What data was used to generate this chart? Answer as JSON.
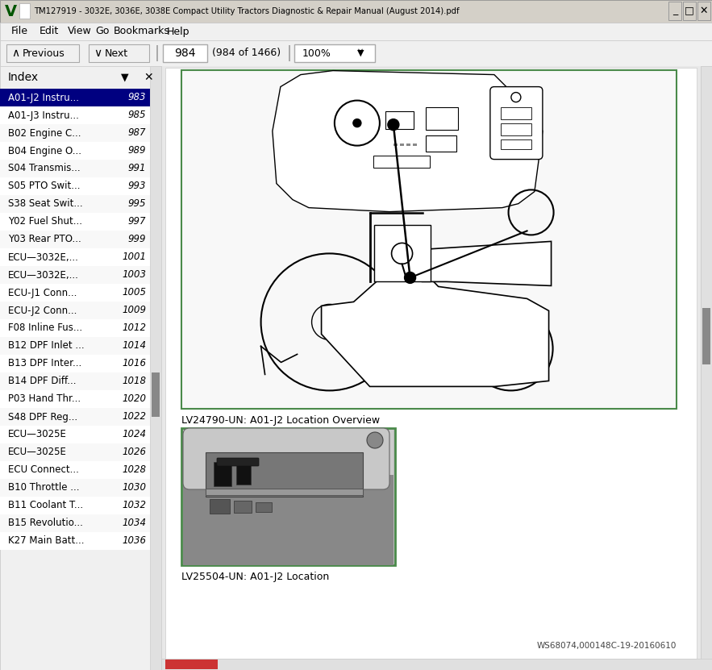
{
  "window_title": "TM127919 - 3032E, 3036E, 3038E Compact Utility Tractors Diagnostic & Repair Manual (August 2014).pdf",
  "menu_items": [
    "File",
    "Edit",
    "View",
    "Go",
    "Bookmarks",
    "Help"
  ],
  "page_number": "984",
  "page_info": "(984 of 1466)",
  "zoom_level": "100%",
  "index_entries": [
    [
      "A01-J2 Instru...",
      "983"
    ],
    [
      "A01-J3 Instru...",
      "985"
    ],
    [
      "B02 Engine C...",
      "987"
    ],
    [
      "B04 Engine O...",
      "989"
    ],
    [
      "S04 Transmis...",
      "991"
    ],
    [
      "S05 PTO Swit...",
      "993"
    ],
    [
      "S38 Seat Swit...",
      "995"
    ],
    [
      "Y02 Fuel Shut...",
      "997"
    ],
    [
      "Y03 Rear PTO...",
      "999"
    ],
    [
      "ECU—3032E,...",
      "1001"
    ],
    [
      "ECU—3032E,...",
      "1003"
    ],
    [
      "ECU-J1 Conn...",
      "1005"
    ],
    [
      "ECU-J2 Conn...",
      "1009"
    ],
    [
      "F08 Inline Fus...",
      "1012"
    ],
    [
      "B12 DPF Inlet ...",
      "1014"
    ],
    [
      "B13 DPF Inter...",
      "1016"
    ],
    [
      "B14 DPF Diff...",
      "1018"
    ],
    [
      "P03 Hand Thr...",
      "1020"
    ],
    [
      "S48 DPF Reg...",
      "1022"
    ],
    [
      "ECU—3025E",
      "1024"
    ],
    [
      "ECU—3025E",
      "1026"
    ],
    [
      "ECU Connect...",
      "1028"
    ],
    [
      "B10 Throttle ...",
      "1030"
    ],
    [
      "B11 Coolant T...",
      "1032"
    ],
    [
      "B15 Revolutio...",
      "1034"
    ],
    [
      "K27 Main Batt...",
      "1036"
    ]
  ],
  "caption1": "LV24790-UN: A01-J2 Location Overview",
  "caption2": "LV25504-UN: A01-J2 Location",
  "watermark": "WS68074,000148C-19-20160610",
  "titlebar_bg": "#d4d0c8",
  "menubar_bg": "#f0f0f0",
  "toolbar_bg": "#f0f0f0",
  "sidebar_bg": "#f5f5f5",
  "content_bg": "#ffffff",
  "page_bg": "#ffffff",
  "selected_bg": "#000080",
  "selected_fg": "#ffffff",
  "scrollbar_bg": "#e0e0e0",
  "scrollbar_thumb": "#888888",
  "diagram_border": "#4a8a4a",
  "photo_border": "#4a8a4a",
  "window_bg": "#c0c0c0"
}
